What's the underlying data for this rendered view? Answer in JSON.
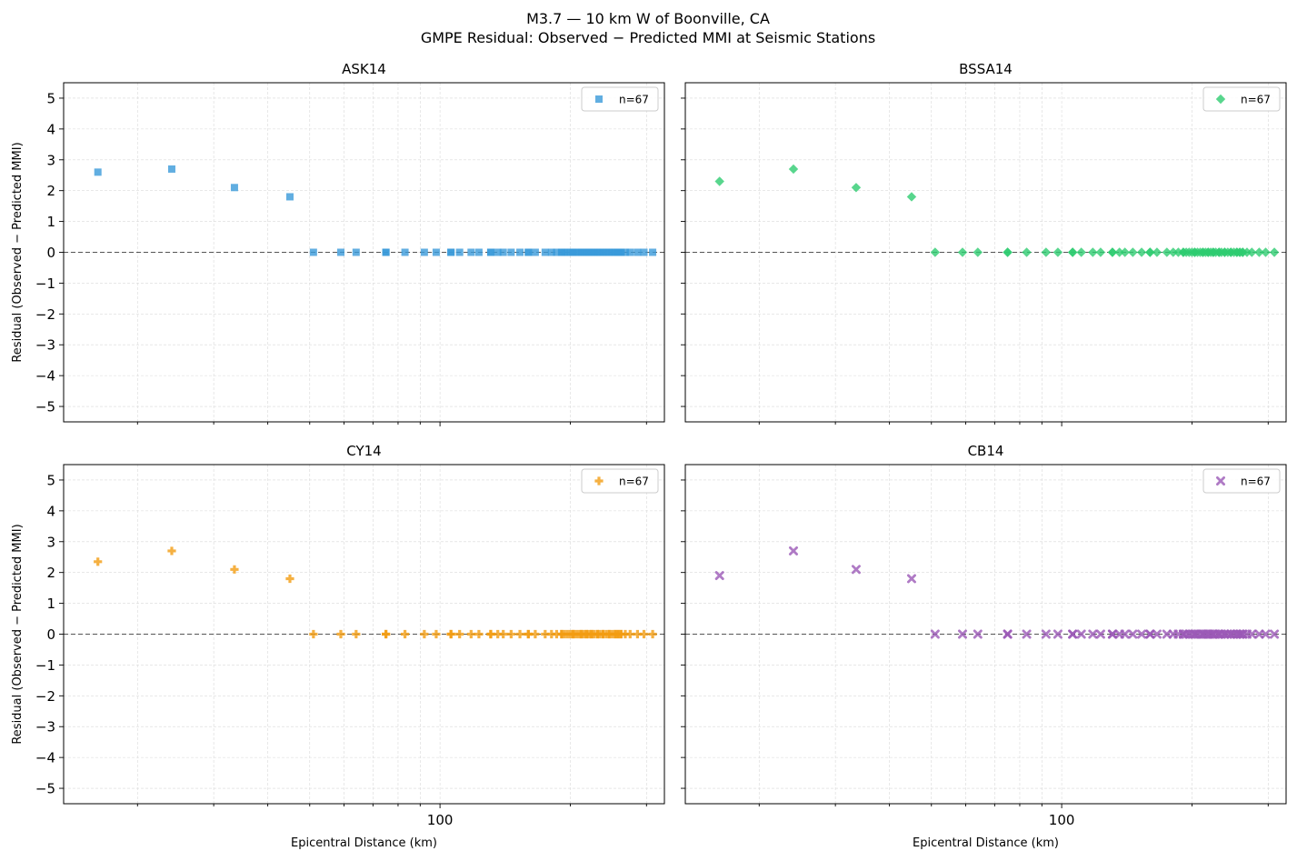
{
  "figure": {
    "title_line1": "M3.7 — 10 km W of Boonville, CA",
    "title_line2": "GMPE Residual: Observed − Predicted MMI at Seismic Stations"
  },
  "chart_data": [
    {
      "type": "scatter",
      "title": "ASK14",
      "xlabel": "",
      "ylabel": "Residual (Observed − Predicted MMI)",
      "xscale": "log",
      "xlim": [
        13.5,
        330
      ],
      "ylim": [
        -5.5,
        5.5
      ],
      "xticks_major": [
        100
      ],
      "yticks": [
        -5,
        -4,
        -3,
        -2,
        -1,
        0,
        1,
        2,
        3,
        4,
        5
      ],
      "grid": true,
      "reference_line_y": 0,
      "legend": {
        "label": "n=67",
        "placement": "upper right"
      },
      "marker": "square",
      "color": "#3a9ad9",
      "series": [
        {
          "x": [
            16.2,
            24,
            33.5,
            45,
            51,
            59,
            64,
            75,
            83,
            92,
            98,
            106,
            111,
            118,
            123,
            131,
            136,
            140,
            146,
            153,
            160,
            166,
            175,
            181,
            186,
            191,
            194,
            197,
            200,
            203,
            206,
            209,
            212,
            215,
            218,
            221,
            224,
            227,
            231,
            234,
            238,
            242,
            246,
            250,
            254,
            258,
            262,
            268,
            275,
            286,
            296,
            310,
            75,
            106,
            131,
            160,
            191,
            203,
            212,
            218,
            224,
            231,
            238,
            246,
            254,
            258,
            262
          ],
          "y": [
            2.6,
            2.7,
            2.1,
            1.8,
            0,
            0,
            0,
            0,
            0,
            0,
            0,
            0,
            0,
            0,
            0,
            0,
            0,
            0,
            0,
            0,
            0,
            0,
            0,
            0,
            0,
            0,
            0,
            0,
            0,
            0,
            0,
            0,
            0,
            0,
            0,
            0,
            0,
            0,
            0,
            0,
            0,
            0,
            0,
            0,
            0,
            0,
            0,
            0,
            0,
            0,
            0,
            0,
            0,
            0,
            0,
            0,
            0,
            0,
            0,
            0,
            0,
            0,
            0,
            0,
            0,
            0,
            0
          ]
        }
      ]
    },
    {
      "type": "scatter",
      "title": "BSSA14",
      "xlabel": "",
      "ylabel": "",
      "xscale": "log",
      "xlim": [
        13.5,
        330
      ],
      "ylim": [
        -5.5,
        5.5
      ],
      "xticks_major": [
        100
      ],
      "yticks": [
        -5,
        -4,
        -3,
        -2,
        -1,
        0,
        1,
        2,
        3,
        4,
        5
      ],
      "grid": true,
      "reference_line_y": 0,
      "legend": {
        "label": "n=67",
        "placement": "upper right"
      },
      "marker": "diamond",
      "color": "#2ecc71",
      "series": [
        {
          "x": [
            16.2,
            24,
            33.5,
            45,
            51,
            59,
            64,
            75,
            83,
            92,
            98,
            106,
            111,
            118,
            123,
            131,
            136,
            140,
            146,
            153,
            160,
            166,
            175,
            181,
            186,
            191,
            194,
            197,
            200,
            203,
            206,
            209,
            212,
            215,
            218,
            221,
            224,
            227,
            231,
            234,
            238,
            242,
            246,
            250,
            254,
            258,
            262,
            268,
            275,
            286,
            296,
            310,
            75,
            106,
            131,
            160,
            191,
            203,
            212,
            218,
            224,
            231,
            238,
            246,
            254,
            258,
            262
          ],
          "y": [
            2.3,
            2.7,
            2.1,
            1.8,
            0,
            0,
            0,
            0,
            0,
            0,
            0,
            0,
            0,
            0,
            0,
            0,
            0,
            0,
            0,
            0,
            0,
            0,
            0,
            0,
            0,
            0,
            0,
            0,
            0,
            0,
            0,
            0,
            0,
            0,
            0,
            0,
            0,
            0,
            0,
            0,
            0,
            0,
            0,
            0,
            0,
            0,
            0,
            0,
            0,
            0,
            0,
            0,
            0,
            0,
            0,
            0,
            0,
            0,
            0,
            0,
            0,
            0,
            0,
            0,
            0,
            0,
            0
          ]
        }
      ]
    },
    {
      "type": "scatter",
      "title": "CY14",
      "xlabel": "Epicentral Distance (km)",
      "ylabel": "Residual (Observed − Predicted MMI)",
      "xscale": "log",
      "xlim": [
        13.5,
        330
      ],
      "ylim": [
        -5.5,
        5.5
      ],
      "xticks_major": [
        100
      ],
      "yticks": [
        -5,
        -4,
        -3,
        -2,
        -1,
        0,
        1,
        2,
        3,
        4,
        5
      ],
      "grid": true,
      "reference_line_y": 0,
      "legend": {
        "label": "n=67",
        "placement": "upper right"
      },
      "marker": "plus",
      "color": "#f39c12",
      "series": [
        {
          "x": [
            16.2,
            24,
            33.5,
            45,
            51,
            59,
            64,
            75,
            83,
            92,
            98,
            106,
            111,
            118,
            123,
            131,
            136,
            140,
            146,
            153,
            160,
            166,
            175,
            181,
            186,
            191,
            194,
            197,
            200,
            203,
            206,
            209,
            212,
            215,
            218,
            221,
            224,
            227,
            231,
            234,
            238,
            242,
            246,
            250,
            254,
            258,
            262,
            268,
            275,
            286,
            296,
            310,
            75,
            106,
            131,
            160,
            191,
            203,
            212,
            218,
            224,
            231,
            238,
            246,
            254,
            258,
            262
          ],
          "y": [
            2.35,
            2.7,
            2.1,
            1.8,
            0,
            0,
            0,
            0,
            0,
            0,
            0,
            0,
            0,
            0,
            0,
            0,
            0,
            0,
            0,
            0,
            0,
            0,
            0,
            0,
            0,
            0,
            0,
            0,
            0,
            0,
            0,
            0,
            0,
            0,
            0,
            0,
            0,
            0,
            0,
            0,
            0,
            0,
            0,
            0,
            0,
            0,
            0,
            0,
            0,
            0,
            0,
            0,
            0,
            0,
            0,
            0,
            0,
            0,
            0,
            0,
            0,
            0,
            0,
            0,
            0,
            0,
            0
          ]
        }
      ]
    },
    {
      "type": "scatter",
      "title": "CB14",
      "xlabel": "Epicentral Distance (km)",
      "ylabel": "",
      "xscale": "log",
      "xlim": [
        13.5,
        330
      ],
      "ylim": [
        -5.5,
        5.5
      ],
      "xticks_major": [
        100
      ],
      "yticks": [
        -5,
        -4,
        -3,
        -2,
        -1,
        0,
        1,
        2,
        3,
        4,
        5
      ],
      "grid": true,
      "reference_line_y": 0,
      "legend": {
        "label": "n=67",
        "placement": "upper right"
      },
      "marker": "x",
      "color": "#9b59b6",
      "series": [
        {
          "x": [
            16.2,
            24,
            33.5,
            45,
            51,
            59,
            64,
            75,
            83,
            92,
            98,
            106,
            111,
            118,
            123,
            131,
            136,
            140,
            146,
            153,
            160,
            166,
            175,
            181,
            186,
            191,
            194,
            197,
            200,
            203,
            206,
            209,
            212,
            215,
            218,
            221,
            224,
            227,
            231,
            234,
            238,
            242,
            246,
            250,
            254,
            258,
            262,
            268,
            275,
            286,
            296,
            310,
            75,
            106,
            131,
            160,
            191,
            203,
            212,
            218,
            224,
            231,
            238,
            246,
            254,
            258,
            262
          ],
          "y": [
            1.9,
            2.7,
            2.1,
            1.8,
            0,
            0,
            0,
            0,
            0,
            0,
            0,
            0,
            0,
            0,
            0,
            0,
            0,
            0,
            0,
            0,
            0,
            0,
            0,
            0,
            0,
            0,
            0,
            0,
            0,
            0,
            0,
            0,
            0,
            0,
            0,
            0,
            0,
            0,
            0,
            0,
            0,
            0,
            0,
            0,
            0,
            0,
            0,
            0,
            0,
            0,
            0,
            0,
            0,
            0,
            0,
            0,
            0,
            0,
            0,
            0,
            0,
            0,
            0,
            0,
            0,
            0,
            0
          ]
        }
      ]
    }
  ]
}
